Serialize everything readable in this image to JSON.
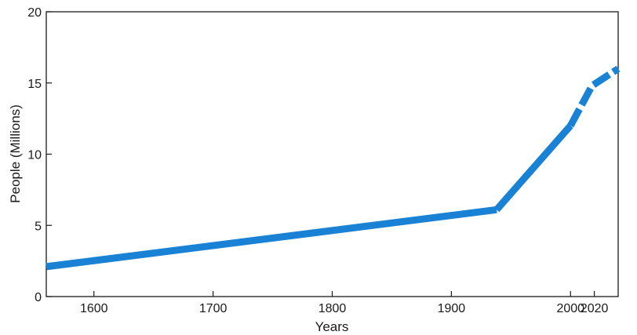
{
  "chart_data": {
    "type": "line",
    "title": "",
    "xlabel": "Years",
    "ylabel": "People (Millions)",
    "xlim": [
      1560,
      2040
    ],
    "ylim": [
      0,
      20
    ],
    "x_ticks": [
      1600,
      1700,
      1800,
      1900,
      2000,
      2020
    ],
    "x_tick_labels": [
      "1600",
      "1700",
      "1800",
      "1900",
      "2000",
      "2020"
    ],
    "y_ticks": [
      0,
      5,
      10,
      15,
      20
    ],
    "y_tick_labels": [
      "0",
      "5",
      "10",
      "15",
      "20"
    ],
    "grid": false,
    "line_color": "#1a82d4",
    "series": [
      {
        "segments": [
          {
            "style": "solid",
            "x": [
              1560,
              1938
            ],
            "y": [
              2.1,
              6.1
            ]
          },
          {
            "style": "solid",
            "x": [
              1938,
              2000
            ],
            "y": [
              6.1,
              12.0
            ]
          },
          {
            "style": "dashed",
            "x": [
              2000,
              2018,
              2040
            ],
            "y": [
              12.0,
              14.8,
              16.0
            ]
          }
        ]
      }
    ]
  }
}
